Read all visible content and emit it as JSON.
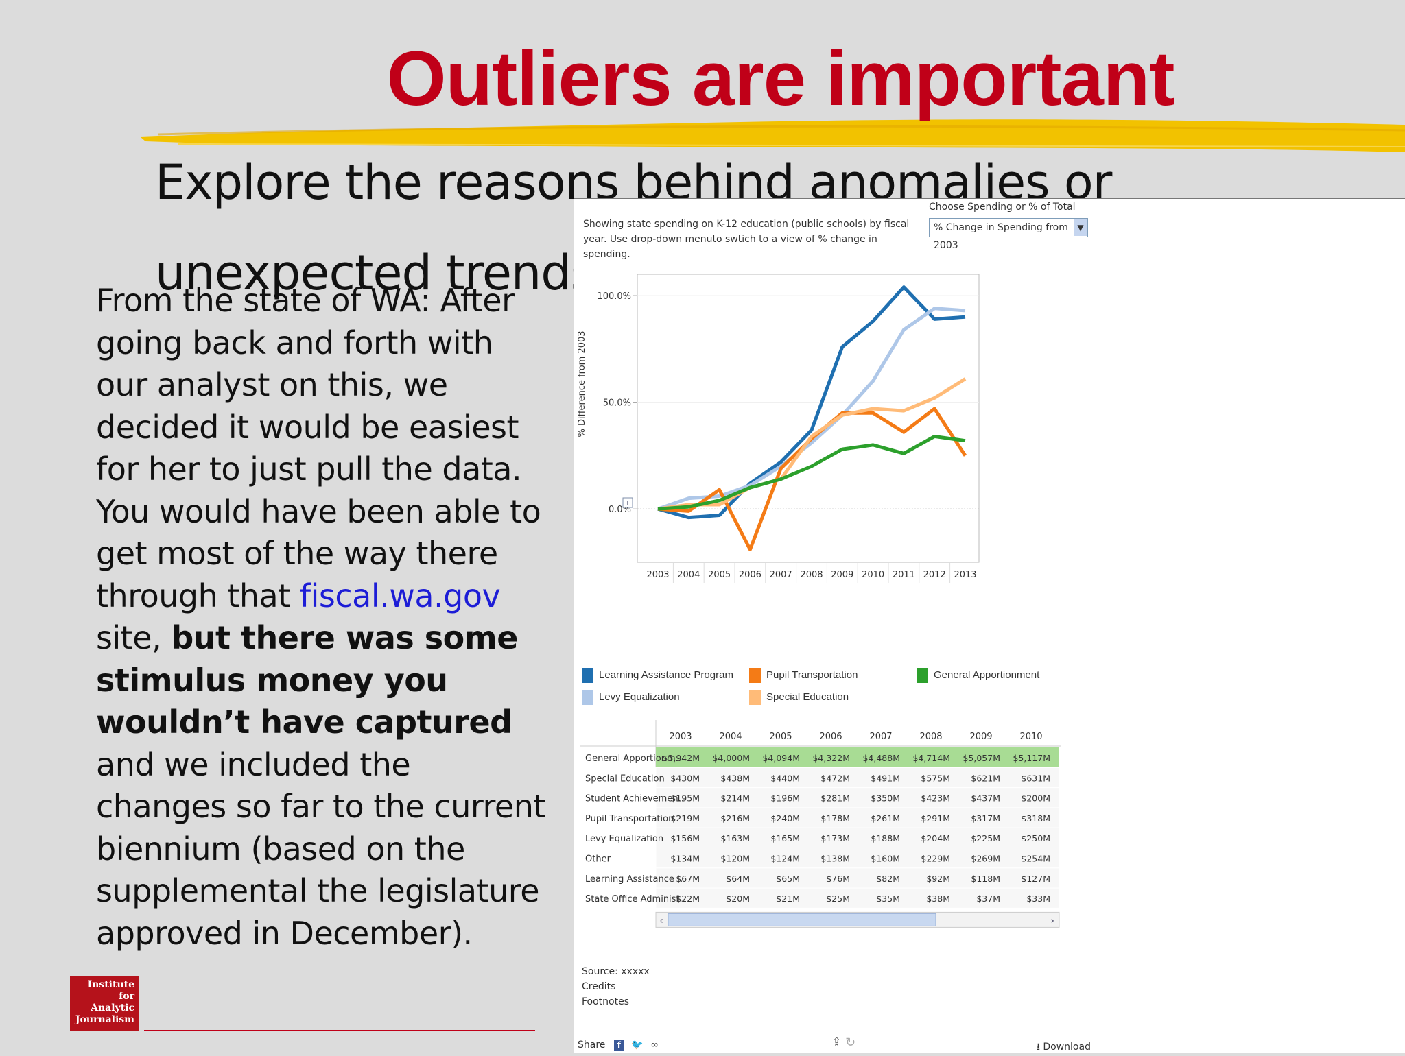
{
  "slide": {
    "title": "Outliers are important",
    "subtitle": "Explore the reasons behind anomalies or unexpected trends in the data.",
    "body": {
      "p1": "From the state of WA: After going back and forth with our analyst on this, we decided it would be easiest for her to just pull the data. You would have been able to get most of the way there through that ",
      "link": "fiscal.wa.gov",
      "p2": " site, ",
      "bold": "but there was some stimulus money you wouldn’t have captured",
      "p3": " and we included the changes so far to the current biennium (based on the supplemental the legislature approved in December)."
    },
    "logo_text": "Institute for Analytic Journalism",
    "colors": {
      "title": "#c00018",
      "highlight": "#f2c200",
      "link": "#1d1dd6"
    }
  },
  "viz": {
    "description": "Showing state spending on K-12 education (public schools) by fiscal year. Use drop-down menuto swtich to a view of % change in spending.",
    "choose_label": "Choose Spending or % of Total",
    "dropdown_value": "% Change in Spending from 2003",
    "legend": [
      {
        "label": "Learning Assistance Program",
        "color": "#1f6fb0"
      },
      {
        "label": "Pupil Transportation",
        "color": "#f47b16"
      },
      {
        "label": "General Apportionment",
        "color": "#2ca02c"
      },
      {
        "label": "Levy Equalization",
        "color": "#aec7e8"
      },
      {
        "label": "Special Education",
        "color": "#ffbb78"
      }
    ],
    "table": {
      "columns": [
        "2003",
        "2004",
        "2005",
        "2006",
        "2007",
        "2008",
        "2009",
        "2010"
      ],
      "rows": [
        {
          "label": "General Apportionm..",
          "values": [
            "$3,942M",
            "$4,000M",
            "$4,094M",
            "$4,322M",
            "$4,488M",
            "$4,714M",
            "$5,057M",
            "$5,117M"
          ]
        },
        {
          "label": "Special Education",
          "values": [
            "$430M",
            "$438M",
            "$440M",
            "$472M",
            "$491M",
            "$575M",
            "$621M",
            "$631M"
          ]
        },
        {
          "label": "Student Achievemen..",
          "values": [
            "$195M",
            "$214M",
            "$196M",
            "$281M",
            "$350M",
            "$423M",
            "$437M",
            "$200M"
          ]
        },
        {
          "label": "Pupil Transportation",
          "values": [
            "$219M",
            "$216M",
            "$240M",
            "$178M",
            "$261M",
            "$291M",
            "$317M",
            "$318M"
          ]
        },
        {
          "label": "Levy Equalization",
          "values": [
            "$156M",
            "$163M",
            "$165M",
            "$173M",
            "$188M",
            "$204M",
            "$225M",
            "$250M"
          ]
        },
        {
          "label": "Other",
          "values": [
            "$134M",
            "$120M",
            "$124M",
            "$138M",
            "$160M",
            "$229M",
            "$269M",
            "$254M"
          ]
        },
        {
          "label": "Learning Assistance ..",
          "values": [
            "$67M",
            "$64M",
            "$65M",
            "$76M",
            "$82M",
            "$92M",
            "$118M",
            "$127M"
          ]
        },
        {
          "label": "State Office Administ..",
          "values": [
            "$22M",
            "$20M",
            "$21M",
            "$25M",
            "$35M",
            "$38M",
            "$37M",
            "$33M"
          ]
        }
      ]
    },
    "source": [
      "Source: xxxxx",
      "Credits",
      "Footnotes"
    ],
    "share_label": "Share",
    "download_label": "Download"
  },
  "chart_data": {
    "type": "line",
    "x": [
      "2003",
      "2004",
      "2005",
      "2006",
      "2007",
      "2008",
      "2009",
      "2010",
      "2011",
      "2012",
      "2013"
    ],
    "ylabel": "% Difference from 2003",
    "ylim": [
      -25,
      110
    ],
    "yticks": [
      "0.0%",
      "50.0%",
      "100.0%"
    ],
    "yticks_values": [
      0,
      50,
      100
    ],
    "legend_position": "bottom",
    "series": [
      {
        "name": "Learning Assistance Program",
        "color": "#1f6fb0",
        "values": [
          0,
          -4,
          -3,
          12,
          22,
          37,
          76,
          88,
          104,
          89,
          90
        ]
      },
      {
        "name": "Levy Equalization",
        "color": "#aec7e8",
        "values": [
          0,
          5,
          6,
          11,
          20,
          31,
          44,
          60,
          84,
          94,
          93
        ]
      },
      {
        "name": "Pupil Transportation",
        "color": "#f47b16",
        "values": [
          0,
          -1,
          9,
          -19,
          19,
          33,
          45,
          45,
          36,
          47,
          25
        ]
      },
      {
        "name": "Special Education",
        "color": "#ffbb78",
        "values": [
          0,
          2,
          2,
          10,
          14,
          34,
          44,
          47,
          46,
          52,
          61
        ]
      },
      {
        "name": "General Apportionment",
        "color": "#2ca02c",
        "values": [
          0,
          1,
          4,
          10,
          14,
          20,
          28,
          30,
          26,
          34,
          32
        ]
      }
    ]
  }
}
